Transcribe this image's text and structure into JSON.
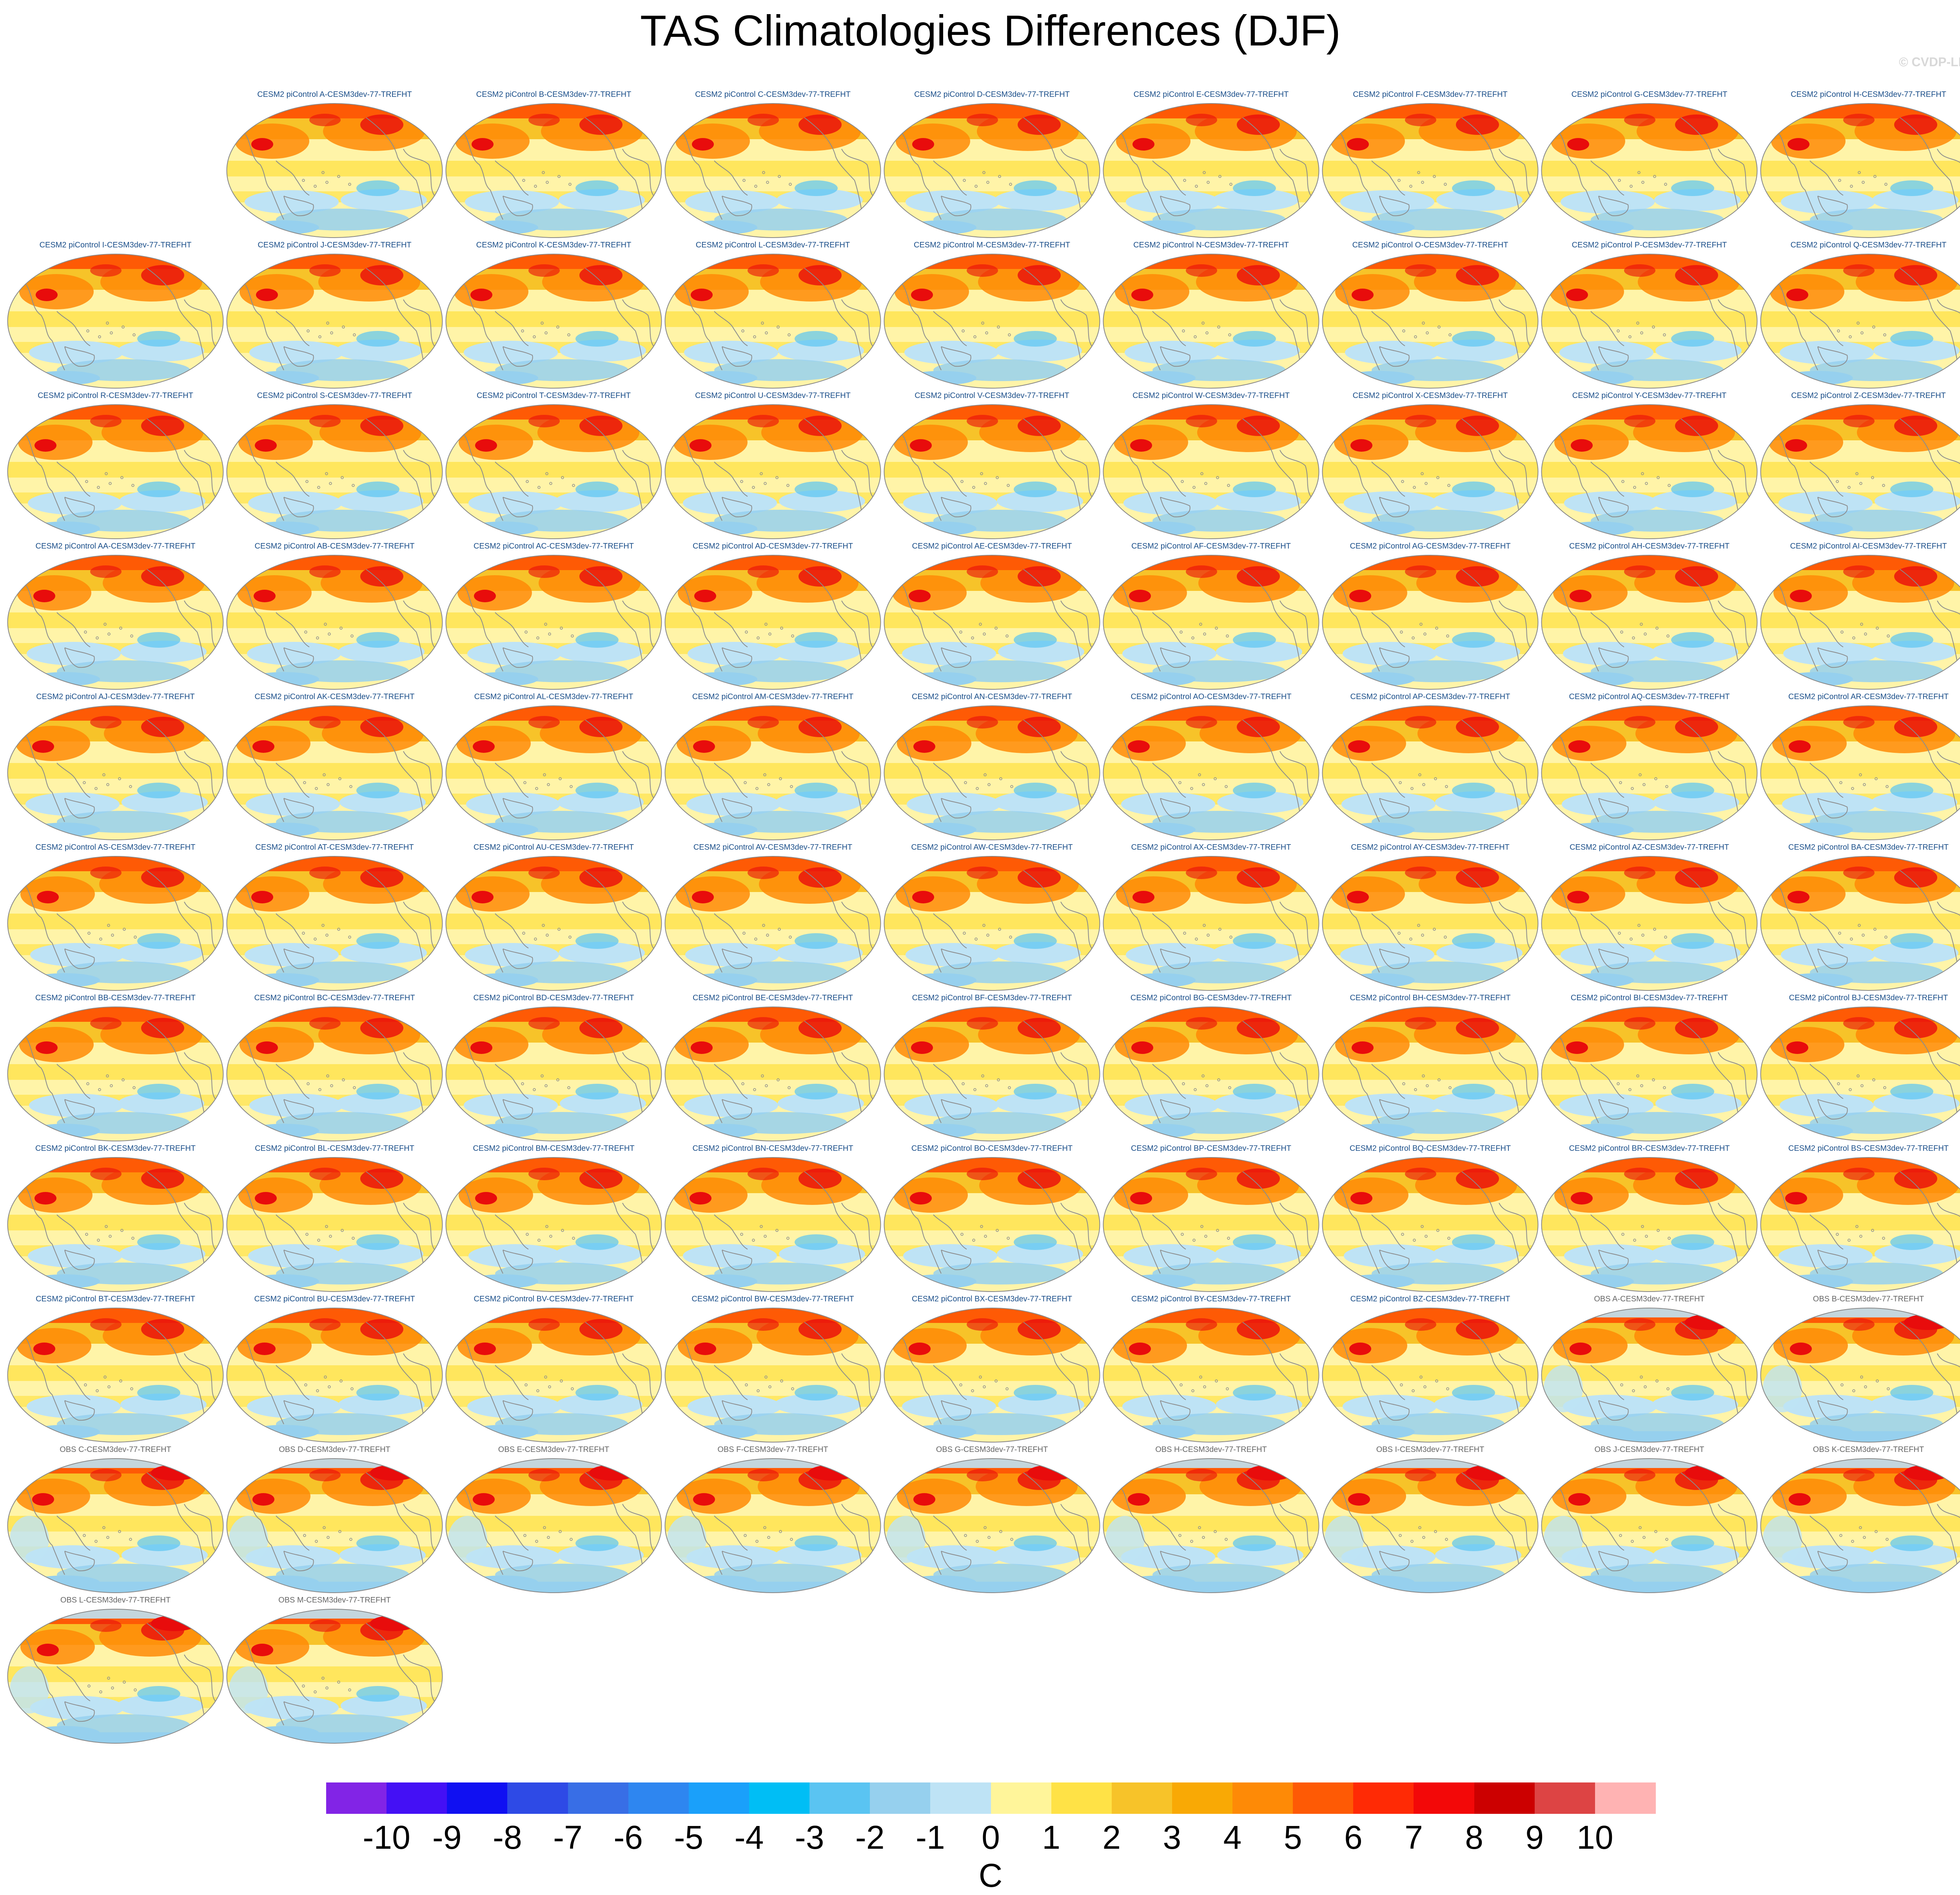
{
  "title": "TAS Climatologies Differences (DJF)",
  "watermark": "© CVDP-LE",
  "panel_titles": [
    "CESM2 piControl A-CESM3dev-77-TREFHT",
    "CESM2 piControl B-CESM3dev-77-TREFHT",
    "CESM2 piControl C-CESM3dev-77-TREFHT",
    "CESM2 piControl D-CESM3dev-77-TREFHT",
    "CESM2 piControl E-CESM3dev-77-TREFHT",
    "CESM2 piControl F-CESM3dev-77-TREFHT",
    "CESM2 piControl G-CESM3dev-77-TREFHT",
    "CESM2 piControl H-CESM3dev-77-TREFHT",
    "CESM2 piControl I-CESM3dev-77-TREFHT",
    "CESM2 piControl J-CESM3dev-77-TREFHT",
    "CESM2 piControl K-CESM3dev-77-TREFHT",
    "CESM2 piControl L-CESM3dev-77-TREFHT",
    "CESM2 piControl M-CESM3dev-77-TREFHT",
    "CESM2 piControl N-CESM3dev-77-TREFHT",
    "CESM2 piControl O-CESM3dev-77-TREFHT",
    "CESM2 piControl P-CESM3dev-77-TREFHT",
    "CESM2 piControl Q-CESM3dev-77-TREFHT",
    "CESM2 piControl R-CESM3dev-77-TREFHT",
    "CESM2 piControl S-CESM3dev-77-TREFHT",
    "CESM2 piControl T-CESM3dev-77-TREFHT",
    "CESM2 piControl U-CESM3dev-77-TREFHT",
    "CESM2 piControl V-CESM3dev-77-TREFHT",
    "CESM2 piControl W-CESM3dev-77-TREFHT",
    "CESM2 piControl X-CESM3dev-77-TREFHT",
    "CESM2 piControl Y-CESM3dev-77-TREFHT",
    "CESM2 piControl Z-CESM3dev-77-TREFHT",
    "CESM2 piControl AA-CESM3dev-77-TREFHT",
    "CESM2 piControl AB-CESM3dev-77-TREFHT",
    "CESM2 piControl AC-CESM3dev-77-TREFHT",
    "CESM2 piControl AD-CESM3dev-77-TREFHT",
    "CESM2 piControl AE-CESM3dev-77-TREFHT",
    "CESM2 piControl AF-CESM3dev-77-TREFHT",
    "CESM2 piControl AG-CESM3dev-77-TREFHT",
    "CESM2 piControl AH-CESM3dev-77-TREFHT",
    "CESM2 piControl AI-CESM3dev-77-TREFHT",
    "CESM2 piControl AJ-CESM3dev-77-TREFHT",
    "CESM2 piControl AK-CESM3dev-77-TREFHT",
    "CESM2 piControl AL-CESM3dev-77-TREFHT",
    "CESM2 piControl AM-CESM3dev-77-TREFHT",
    "CESM2 piControl AN-CESM3dev-77-TREFHT",
    "CESM2 piControl AO-CESM3dev-77-TREFHT",
    "CESM2 piControl AP-CESM3dev-77-TREFHT",
    "CESM2 piControl AQ-CESM3dev-77-TREFHT",
    "CESM2 piControl AR-CESM3dev-77-TREFHT",
    "CESM2 piControl AS-CESM3dev-77-TREFHT",
    "CESM2 piControl AT-CESM3dev-77-TREFHT",
    "CESM2 piControl AU-CESM3dev-77-TREFHT",
    "CESM2 piControl AV-CESM3dev-77-TREFHT",
    "CESM2 piControl AW-CESM3dev-77-TREFHT",
    "CESM2 piControl AX-CESM3dev-77-TREFHT",
    "CESM2 piControl AY-CESM3dev-77-TREFHT",
    "CESM2 piControl AZ-CESM3dev-77-TREFHT",
    "CESM2 piControl BA-CESM3dev-77-TREFHT",
    "CESM2 piControl BB-CESM3dev-77-TREFHT",
    "CESM2 piControl BC-CESM3dev-77-TREFHT",
    "CESM2 piControl BD-CESM3dev-77-TREFHT",
    "CESM2 piControl BE-CESM3dev-77-TREFHT",
    "CESM2 piControl BF-CESM3dev-77-TREFHT",
    "CESM2 piControl BG-CESM3dev-77-TREFHT",
    "CESM2 piControl BH-CESM3dev-77-TREFHT",
    "CESM2 piControl BI-CESM3dev-77-TREFHT",
    "CESM2 piControl BJ-CESM3dev-77-TREFHT",
    "CESM2 piControl BK-CESM3dev-77-TREFHT",
    "CESM2 piControl BL-CESM3dev-77-TREFHT",
    "CESM2 piControl BM-CESM3dev-77-TREFHT",
    "CESM2 piControl BN-CESM3dev-77-TREFHT",
    "CESM2 piControl BO-CESM3dev-77-TREFHT",
    "CESM2 piControl BP-CESM3dev-77-TREFHT",
    "CESM2 piControl BQ-CESM3dev-77-TREFHT",
    "CESM2 piControl BR-CESM3dev-77-TREFHT",
    "CESM2 piControl BS-CESM3dev-77-TREFHT",
    "CESM2 piControl BT-CESM3dev-77-TREFHT",
    "CESM2 piControl BU-CESM3dev-77-TREFHT",
    "CESM2 piControl BV-CESM3dev-77-TREFHT",
    "CESM2 piControl BW-CESM3dev-77-TREFHT",
    "CESM2 piControl BX-CESM3dev-77-TREFHT",
    "CESM2 piControl BY-CESM3dev-77-TREFHT",
    "CESM2 piControl BZ-CESM3dev-77-TREFHT",
    "OBS A-CESM3dev-77-TREFHT",
    "OBS B-CESM3dev-77-TREFHT",
    "OBS C-CESM3dev-77-TREFHT",
    "OBS D-CESM3dev-77-TREFHT",
    "OBS E-CESM3dev-77-TREFHT",
    "OBS F-CESM3dev-77-TREFHT",
    "OBS G-CESM3dev-77-TREFHT",
    "OBS H-CESM3dev-77-TREFHT",
    "OBS I-CESM3dev-77-TREFHT",
    "OBS J-CESM3dev-77-TREFHT",
    "OBS K-CESM3dev-77-TREFHT",
    "OBS L-CESM3dev-77-TREFHT",
    "OBS M-CESM3dev-77-TREFHT"
  ],
  "colorbar": {
    "units": "C",
    "labels": [
      "-10",
      "-9",
      "-8",
      "-7",
      "-6",
      "-5",
      "-4",
      "-3",
      "-2",
      "-1",
      "0",
      "1",
      "2",
      "3",
      "4",
      "5",
      "6",
      "7",
      "8",
      "9",
      "10"
    ],
    "colors": [
      "#8224e6",
      "#4410f5",
      "#1010f2",
      "#2e4ae6",
      "#386ee6",
      "#2e86f0",
      "#1aa0fa",
      "#00bef5",
      "#5ac4f2",
      "#96d0ee",
      "#bee3f5",
      "#fff59a",
      "#ffe246",
      "#f7c329",
      "#f9a905",
      "#fe8a06",
      "#fe5a05",
      "#ff2a05",
      "#f30808",
      "#cc0000",
      "#dd4444",
      "#ffb3b3"
    ]
  },
  "map_colors": {
    "pale": "#fff4a8",
    "yellow": "#ffe24a",
    "gold": "#f7c329",
    "orange": "#ff8a06",
    "red_orange": "#fe5a05",
    "red": "#e80c0c",
    "light_blue": "#bee3f5",
    "blue": "#96d0ee",
    "mid_blue": "#5ac4f2",
    "coast": "#8c8c8c",
    "border": "#888888"
  }
}
